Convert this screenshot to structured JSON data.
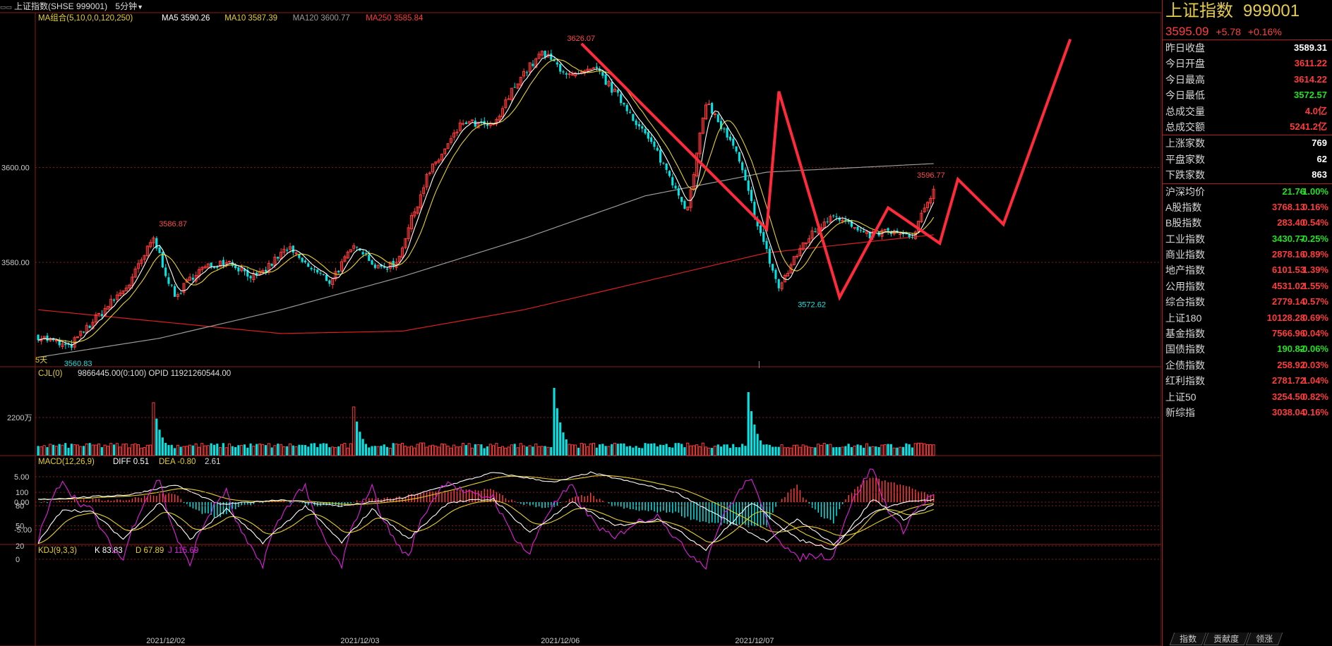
{
  "header": {
    "title": "上证指数(SHSE 999001)",
    "period": "5分钟"
  },
  "legends": {
    "ma_group": "MA组合(5,10,0,0,120,250)",
    "ma5": "MA5 3590.26",
    "ma10": "MA10 3587.39",
    "ma120": "MA120 3600.77",
    "ma250": "MA250 3585.84",
    "cjl": "CJL(0)",
    "cjl_values": "9866445.00(0:100)  OPID 11921260544.00",
    "macd": "MACD(12,26,9)",
    "diff": "DIFF 0.51",
    "dea": "DEA -0.80",
    "macd_val": "2.61",
    "kdj": "KDJ(9,3,3)",
    "k": "K 83.83",
    "d": "D 67.89",
    "j": "J 115.69",
    "days_label": "5天"
  },
  "colors": {
    "up": "#ff3b3b",
    "down": "#00e5e5",
    "ma5": "#ffffff",
    "ma10": "#e6d02a",
    "ma120": "#9a9a9a",
    "ma250": "#d82020",
    "grid": "#8b1a1a",
    "zigzag": "#ff2a3a",
    "kdj_j": "#e020e0"
  },
  "chart_data": {
    "type": "candlestick",
    "y_ticks": [
      "3600.00",
      "3580.00"
    ],
    "volume_tick": "2200万",
    "macd_ticks": [
      "5.00",
      "0.00",
      "-5.00"
    ],
    "kdj_ticks": [
      "100",
      "80",
      "50",
      "20",
      "0"
    ],
    "x_dates": [
      "2021/12/02",
      "2021/12/03",
      "2021/12/06",
      "2021/12/07"
    ],
    "annotations": {
      "high": "3626.07",
      "low_left": "3560.83",
      "peak_left": "3586.87",
      "low_right": "3572.62",
      "last": "3596.77"
    },
    "ohlc_anchors": [
      {
        "i": 0,
        "p": 3564.5
      },
      {
        "i": 10,
        "p": 3562.0
      },
      {
        "i": 18,
        "p": 3567.5
      },
      {
        "i": 30,
        "p": 3575.5
      },
      {
        "i": 38,
        "p": 3585.0
      },
      {
        "i": 45,
        "p": 3572.5
      },
      {
        "i": 52,
        "p": 3578.0
      },
      {
        "i": 62,
        "p": 3580.5
      },
      {
        "i": 72,
        "p": 3576.5
      },
      {
        "i": 82,
        "p": 3583.0
      },
      {
        "i": 88,
        "p": 3579.5
      },
      {
        "i": 96,
        "p": 3576.0
      },
      {
        "i": 105,
        "p": 3584.0
      },
      {
        "i": 112,
        "p": 3578.5
      },
      {
        "i": 118,
        "p": 3580.0
      },
      {
        "i": 128,
        "p": 3598.0
      },
      {
        "i": 140,
        "p": 3609.5
      },
      {
        "i": 150,
        "p": 3608.5
      },
      {
        "i": 158,
        "p": 3618.5
      },
      {
        "i": 166,
        "p": 3624.0
      },
      {
        "i": 176,
        "p": 3619.0
      },
      {
        "i": 184,
        "p": 3620.5
      },
      {
        "i": 194,
        "p": 3612.5
      },
      {
        "i": 204,
        "p": 3603.0
      },
      {
        "i": 214,
        "p": 3591.0
      },
      {
        "i": 220,
        "p": 3614.0
      },
      {
        "i": 230,
        "p": 3603.0
      },
      {
        "i": 238,
        "p": 3586.0
      },
      {
        "i": 244,
        "p": 3574.5
      },
      {
        "i": 252,
        "p": 3584.0
      },
      {
        "i": 262,
        "p": 3590.5
      },
      {
        "i": 272,
        "p": 3585.5
      },
      {
        "i": 280,
        "p": 3586.5
      },
      {
        "i": 288,
        "p": 3585.0
      },
      {
        "i": 295,
        "p": 3595.5
      }
    ],
    "ma120_anchors": [
      {
        "i": 0,
        "p": 3560.0
      },
      {
        "i": 40,
        "p": 3564.0
      },
      {
        "i": 80,
        "p": 3570.0
      },
      {
        "i": 120,
        "p": 3577.0
      },
      {
        "i": 160,
        "p": 3585.0
      },
      {
        "i": 200,
        "p": 3594.0
      },
      {
        "i": 240,
        "p": 3599.0
      },
      {
        "i": 295,
        "p": 3600.8
      }
    ],
    "ma250_anchors": [
      {
        "i": 0,
        "p": 3570.0
      },
      {
        "i": 40,
        "p": 3567.5
      },
      {
        "i": 80,
        "p": 3565.0
      },
      {
        "i": 120,
        "p": 3565.5
      },
      {
        "i": 160,
        "p": 3570.0
      },
      {
        "i": 200,
        "p": 3576.0
      },
      {
        "i": 240,
        "p": 3582.0
      },
      {
        "i": 295,
        "p": 3585.8
      }
    ],
    "zigzag": [
      {
        "i": 179,
        "p": 3626.07
      },
      {
        "i": 240,
        "p": 3587.0
      },
      {
        "i": 244,
        "p": 3616.0
      },
      {
        "i": 264,
        "p": 3572.62
      },
      {
        "i": 280,
        "p": 3591.5
      },
      {
        "i": 297,
        "p": 3584.0
      },
      {
        "i": 303,
        "p": 3597.5
      },
      {
        "i": 318,
        "p": 3588.0
      },
      {
        "i": 340,
        "p": 3627.0
      }
    ],
    "volume_spikes": [
      {
        "i": 38,
        "v": 2.5
      },
      {
        "i": 104,
        "v": 2.3
      },
      {
        "i": 170,
        "v": 3.2
      },
      {
        "i": 234,
        "v": 3.0
      }
    ],
    "macd_diff_anchors": [
      {
        "i": 0,
        "v": 0.5
      },
      {
        "i": 30,
        "v": 1.5
      },
      {
        "i": 45,
        "v": 3.5
      },
      {
        "i": 60,
        "v": -0.5
      },
      {
        "i": 80,
        "v": 0.5
      },
      {
        "i": 100,
        "v": -0.8
      },
      {
        "i": 120,
        "v": 0.8
      },
      {
        "i": 150,
        "v": 6.0
      },
      {
        "i": 170,
        "v": 4.0
      },
      {
        "i": 182,
        "v": 6.0
      },
      {
        "i": 210,
        "v": 2.0
      },
      {
        "i": 240,
        "v": -8.0
      },
      {
        "i": 250,
        "v": -3.5
      },
      {
        "i": 262,
        "v": -8.5
      },
      {
        "i": 275,
        "v": -2.0
      },
      {
        "i": 285,
        "v": 0.0
      },
      {
        "i": 296,
        "v": 0.51
      }
    ],
    "kdj_k_anchors": [
      {
        "i": 0,
        "v": 25
      },
      {
        "i": 8,
        "v": 75
      },
      {
        "i": 18,
        "v": 70
      },
      {
        "i": 28,
        "v": 30
      },
      {
        "i": 40,
        "v": 85
      },
      {
        "i": 50,
        "v": 30
      },
      {
        "i": 62,
        "v": 75
      },
      {
        "i": 74,
        "v": 25
      },
      {
        "i": 88,
        "v": 80
      },
      {
        "i": 100,
        "v": 25
      },
      {
        "i": 110,
        "v": 75
      },
      {
        "i": 122,
        "v": 30
      },
      {
        "i": 135,
        "v": 85
      },
      {
        "i": 150,
        "v": 90
      },
      {
        "i": 162,
        "v": 40
      },
      {
        "i": 176,
        "v": 85
      },
      {
        "i": 190,
        "v": 50
      },
      {
        "i": 205,
        "v": 60
      },
      {
        "i": 220,
        "v": 15
      },
      {
        "i": 235,
        "v": 85
      },
      {
        "i": 250,
        "v": 30
      },
      {
        "i": 262,
        "v": 15
      },
      {
        "i": 275,
        "v": 90
      },
      {
        "i": 285,
        "v": 60
      },
      {
        "i": 296,
        "v": 83.83
      }
    ]
  },
  "panel": {
    "name": "上证指数",
    "code": "999001",
    "price": "3595.09",
    "change": "+5.78",
    "pct": "+0.16%",
    "quote_rows": [
      {
        "label": "昨日收盘",
        "value": "3589.31",
        "color": "white"
      },
      {
        "label": "今日开盘",
        "value": "3611.22",
        "color": "red"
      },
      {
        "label": "今日最高",
        "value": "3614.22",
        "color": "red"
      },
      {
        "label": "今日最低",
        "value": "3572.57",
        "color": "green"
      },
      {
        "label": "总成交量",
        "value": "4.0亿",
        "color": "red"
      },
      {
        "label": "总成交额",
        "value": "5241.2亿",
        "color": "red"
      }
    ],
    "breadth_rows": [
      {
        "label": "上涨家数",
        "value": "769",
        "color": "white"
      },
      {
        "label": "平盘家数",
        "value": "62",
        "color": "white"
      },
      {
        "label": "下跌家数",
        "value": "863",
        "color": "white"
      }
    ],
    "index_rows": [
      {
        "label": "沪深均价",
        "value": "21.76",
        "pct": "-1.00%",
        "vc": "green",
        "pc": "green"
      },
      {
        "label": "A股指数",
        "value": "3768.13",
        "pct": "0.16%",
        "vc": "red",
        "pc": "red"
      },
      {
        "label": "B股指数",
        "value": "283.40",
        "pct": "0.54%",
        "vc": "red",
        "pc": "red"
      },
      {
        "label": "工业指数",
        "value": "3430.77",
        "pct": "-0.25%",
        "vc": "green",
        "pc": "green"
      },
      {
        "label": "商业指数",
        "value": "2878.16",
        "pct": "0.89%",
        "vc": "red",
        "pc": "red"
      },
      {
        "label": "地产指数",
        "value": "6101.53",
        "pct": "1.39%",
        "vc": "red",
        "pc": "red"
      },
      {
        "label": "公用指数",
        "value": "4531.02",
        "pct": "1.55%",
        "vc": "red",
        "pc": "red"
      },
      {
        "label": "综合指数",
        "value": "2779.14",
        "pct": "0.57%",
        "vc": "red",
        "pc": "red"
      },
      {
        "label": "上证180",
        "value": "10128.28",
        "pct": "0.69%",
        "vc": "red",
        "pc": "red"
      },
      {
        "label": "基金指数",
        "value": "7566.96",
        "pct": "0.04%",
        "vc": "red",
        "pc": "red"
      },
      {
        "label": "国债指数",
        "value": "190.82",
        "pct": "-0.06%",
        "vc": "green",
        "pc": "green"
      },
      {
        "label": "企债指数",
        "value": "258.92",
        "pct": "0.03%",
        "vc": "red",
        "pc": "red"
      },
      {
        "label": "红利指数",
        "value": "2781.72",
        "pct": "1.04%",
        "vc": "red",
        "pc": "red"
      },
      {
        "label": "上证50",
        "value": "3254.50",
        "pct": "0.82%",
        "vc": "red",
        "pc": "red"
      },
      {
        "label": "新综指",
        "value": "3038.04",
        "pct": "0.16%",
        "vc": "red",
        "pc": "red"
      }
    ],
    "tabs": [
      "指数",
      "贡献度",
      "领涨"
    ]
  }
}
